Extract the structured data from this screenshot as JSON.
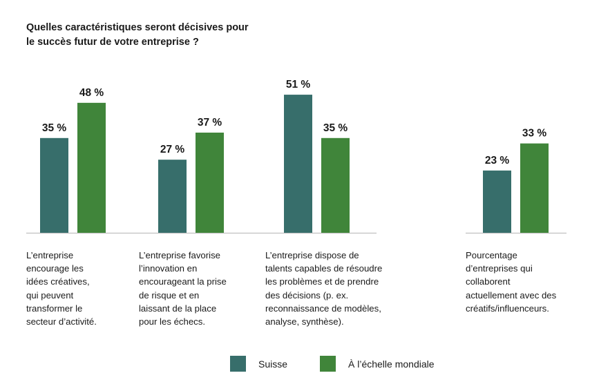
{
  "chart_data": {
    "type": "bar",
    "title": "Quelles caractéristiques seront décisives pour le succès futur de votre entreprise ?",
    "title_lines": [
      "Quelles caractéristiques seront décisives pour",
      "le succès futur de votre entreprise ?"
    ],
    "xlabel": "",
    "ylabel": "",
    "ylim": [
      0,
      100
    ],
    "grid": false,
    "legend_position": "bottom-center",
    "value_suffix": " %",
    "categories": [
      {
        "label_lines": [
          "L’entreprise",
          "encourage les",
          "idées créatives,",
          "qui peuvent",
          "transformer le",
          "secteur d’activité."
        ],
        "group": 1
      },
      {
        "label_lines": [
          "L’entreprise favorise",
          "l’innovation en",
          "encourageant la prise",
          "de risque et en",
          "laissant de la place",
          "pour les échecs."
        ],
        "group": 1
      },
      {
        "label_lines": [
          "L’entreprise dispose de",
          "talents capables de résoudre",
          "les problèmes et de prendre",
          "des décisions (p. ex.",
          "reconnaissance de modèles,",
          "analyse, synthèse)."
        ],
        "group": 1
      },
      {
        "label_lines": [
          "Pourcentage",
          "d’entreprises qui",
          "collaborent",
          "actuellement avec des",
          "créatifs/influenceurs."
        ],
        "group": 2
      }
    ],
    "series": [
      {
        "name": "Suisse",
        "color": "#376e6b",
        "values": [
          35,
          27,
          51,
          23
        ]
      },
      {
        "name": "À l’échelle mondiale",
        "color": "#40853a",
        "values": [
          48,
          37,
          35,
          33
        ]
      }
    ]
  },
  "legend": {
    "items": [
      {
        "label": "Suisse",
        "color": "#376e6b"
      },
      {
        "label": "À l’échelle mondiale",
        "color": "#40853a"
      }
    ]
  },
  "axis_color": "#c8c8c8"
}
